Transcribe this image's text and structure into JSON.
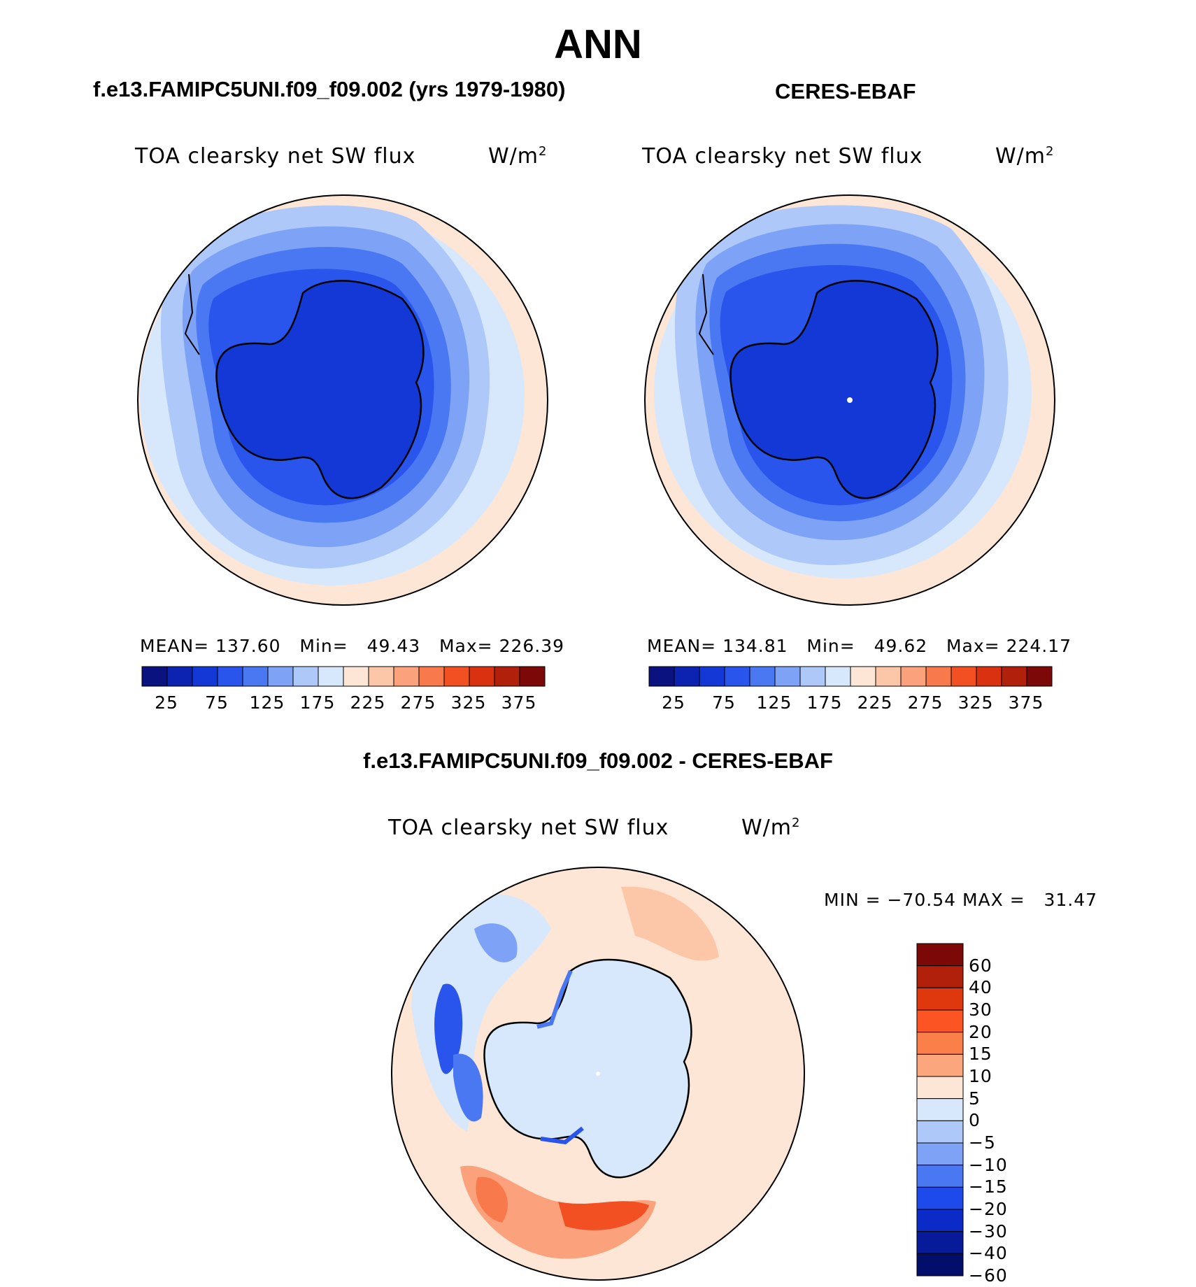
{
  "page": {
    "title": "ANN",
    "diff_title": "f.e13.FAMIPC5UNI.f09_f09.002 - CERES-EBAF"
  },
  "panels": [
    {
      "title": "f.e13.FAMIPC5UNI.f09_f09.002 (yrs 1979-1980)",
      "variable": "TOA clearsky net SW flux",
      "units_base": "W/m",
      "units_exp": "2",
      "stats": {
        "mean_label": "MEAN=",
        "mean": "137.60",
        "min_label": "Min=",
        "min": "49.43",
        "max_label": "Max=",
        "max": "226.39"
      }
    },
    {
      "title": "CERES-EBAF",
      "variable": "TOA clearsky net SW flux",
      "units_base": "W/m",
      "units_exp": "2",
      "stats": {
        "mean_label": "MEAN=",
        "mean": "134.81",
        "min_label": "Min=",
        "min": "49.62",
        "max_label": "Max=",
        "max": "224.17"
      }
    }
  ],
  "diff_panel": {
    "variable": "TOA clearsky net SW flux",
    "units_base": "W/m",
    "units_exp": "2",
    "minmax": "MIN = −70.54 MAX =   31.47"
  },
  "colorbar_abs": {
    "colors": [
      "#0a1280",
      "#0c22b0",
      "#1438d6",
      "#2a55ec",
      "#4a78f2",
      "#7ea2f6",
      "#afc8fa",
      "#d8e8fc",
      "#fde6d6",
      "#fcc6a8",
      "#fba27c",
      "#f87a4c",
      "#f24f22",
      "#da3210",
      "#b0200a",
      "#7c0808"
    ],
    "labels": [
      "25",
      "75",
      "125",
      "175",
      "225",
      "275",
      "325",
      "375"
    ]
  },
  "colorbar_diff": {
    "colors": [
      "#7c0808",
      "#b0200a",
      "#e0380e",
      "#fc5422",
      "#fb7f48",
      "#fba67c",
      "#fde6d6",
      "#d8e8fc",
      "#afc8fa",
      "#7ea2f6",
      "#4a78f2",
      "#1e4aec",
      "#0c2ac8",
      "#061a9a",
      "#030e6a"
    ],
    "labels": [
      "60",
      "40",
      "30",
      "20",
      "15",
      "10",
      "5",
      "0",
      "−5",
      "−10",
      "−15",
      "−20",
      "−30",
      "−40",
      "−60"
    ]
  }
}
